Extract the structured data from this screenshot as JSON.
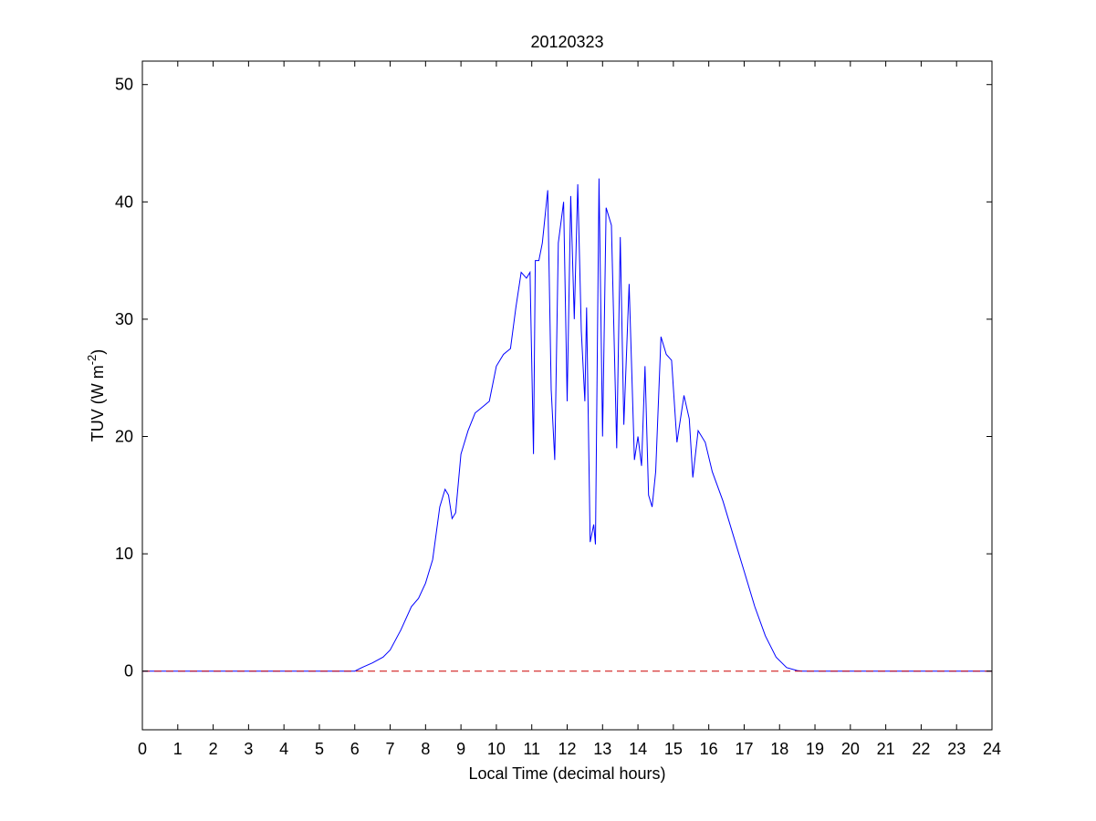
{
  "chart_data": {
    "type": "line",
    "title": "20120323",
    "xlabel": "Local Time (decimal hours)",
    "ylabel": {
      "base": "TUV (W m",
      "sup": "-2",
      "close": ")"
    },
    "xlim": [
      0,
      24
    ],
    "ylim": [
      -5,
      52
    ],
    "xticks": [
      0,
      1,
      2,
      3,
      4,
      5,
      6,
      7,
      8,
      9,
      10,
      11,
      12,
      13,
      14,
      15,
      16,
      17,
      18,
      19,
      20,
      21,
      22,
      23,
      24
    ],
    "yticks": [
      0,
      10,
      20,
      30,
      40,
      50
    ],
    "grid": false,
    "colors": {
      "series": "#0000ff",
      "reference": "#cc0000",
      "axes": "#000000"
    },
    "series": [
      {
        "style": "solid",
        "color": "#0000ff",
        "x": [
          0,
          6.0,
          6.2,
          6.5,
          6.8,
          7.0,
          7.3,
          7.6,
          7.8,
          8.0,
          8.2,
          8.4,
          8.55,
          8.65,
          8.75,
          8.85,
          9.0,
          9.2,
          9.4,
          9.6,
          9.8,
          10.0,
          10.2,
          10.4,
          10.55,
          10.7,
          10.85,
          10.95,
          11.05,
          11.1,
          11.2,
          11.3,
          11.45,
          11.55,
          11.65,
          11.75,
          11.9,
          12.0,
          12.1,
          12.2,
          12.3,
          12.4,
          12.5,
          12.55,
          12.65,
          12.75,
          12.8,
          12.9,
          13.0,
          13.1,
          13.25,
          13.4,
          13.5,
          13.6,
          13.75,
          13.9,
          14.0,
          14.1,
          14.2,
          14.3,
          14.4,
          14.5,
          14.65,
          14.8,
          14.95,
          15.1,
          15.3,
          15.45,
          15.55,
          15.7,
          15.9,
          16.1,
          16.4,
          16.7,
          17.0,
          17.3,
          17.6,
          17.9,
          18.2,
          18.5,
          18.65,
          18.8,
          24
        ],
        "y": [
          0,
          0,
          0.3,
          0.7,
          1.2,
          1.8,
          3.5,
          5.5,
          6.2,
          7.5,
          9.5,
          14.0,
          15.5,
          15.0,
          13.0,
          13.5,
          18.5,
          20.5,
          22.0,
          22.5,
          23.0,
          26.0,
          27.0,
          27.5,
          31.0,
          34.0,
          33.5,
          34.0,
          18.5,
          35.0,
          35.0,
          36.5,
          41.0,
          24.0,
          18.0,
          36.5,
          40.0,
          23.0,
          40.5,
          30.0,
          41.5,
          29.0,
          23.0,
          31.0,
          11.0,
          12.5,
          10.8,
          42.0,
          20.0,
          39.5,
          38.0,
          19.0,
          37.0,
          21.0,
          33.0,
          18.0,
          20.0,
          17.5,
          26.0,
          15.0,
          14.0,
          17.0,
          28.5,
          27.0,
          26.5,
          19.5,
          23.5,
          21.5,
          16.5,
          20.5,
          19.5,
          17.0,
          14.5,
          11.5,
          8.5,
          5.5,
          3.0,
          1.2,
          0.3,
          0.05,
          0,
          0,
          0
        ]
      },
      {
        "style": "dashed",
        "color": "#cc0000",
        "x": [
          0,
          24
        ],
        "y": [
          0,
          0
        ]
      }
    ]
  }
}
